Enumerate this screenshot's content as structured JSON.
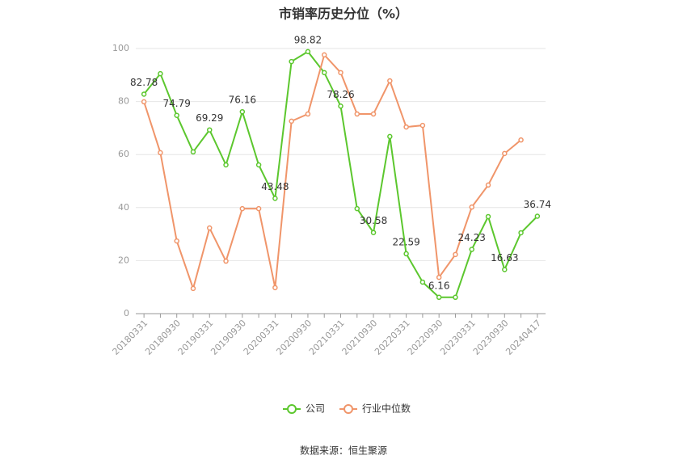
{
  "chart_data": {
    "type": "line",
    "title": "市销率历史分位（%）",
    "categories": [
      "20180331",
      null,
      "20180930",
      null,
      "20190331",
      null,
      "20190930",
      null,
      "20200331",
      null,
      "20200930",
      null,
      "20210331",
      null,
      "20210930",
      null,
      "20220331",
      null,
      "20220930",
      null,
      "20230331",
      null,
      "20230930",
      null,
      "20240417"
    ],
    "series": [
      {
        "name": "公司",
        "color": "#5cc72e",
        "values": [
          82.78,
          90.5,
          74.79,
          61.0,
          69.29,
          56.1,
          76.16,
          56.1,
          43.48,
          95.1,
          98.82,
          90.9,
          78.26,
          39.6,
          30.58,
          66.8,
          22.59,
          11.9,
          6.16,
          6.16,
          24.23,
          36.6,
          16.63,
          30.5,
          36.74
        ]
      },
      {
        "name": "行业中位数",
        "color": "#f0956a",
        "values": [
          79.9,
          60.7,
          27.4,
          9.5,
          32.3,
          19.8,
          39.6,
          39.6,
          9.8,
          72.6,
          75.3,
          97.6,
          90.9,
          75.3,
          75.3,
          87.8,
          70.4,
          71.0,
          13.7,
          22.3,
          40.2,
          48.5,
          60.4,
          65.5,
          null
        ]
      }
    ],
    "ylim": [
      0,
      100
    ],
    "yticks": [
      0,
      20,
      40,
      60,
      80,
      100
    ],
    "grid": true,
    "source": "数据来源：恒生聚源"
  }
}
